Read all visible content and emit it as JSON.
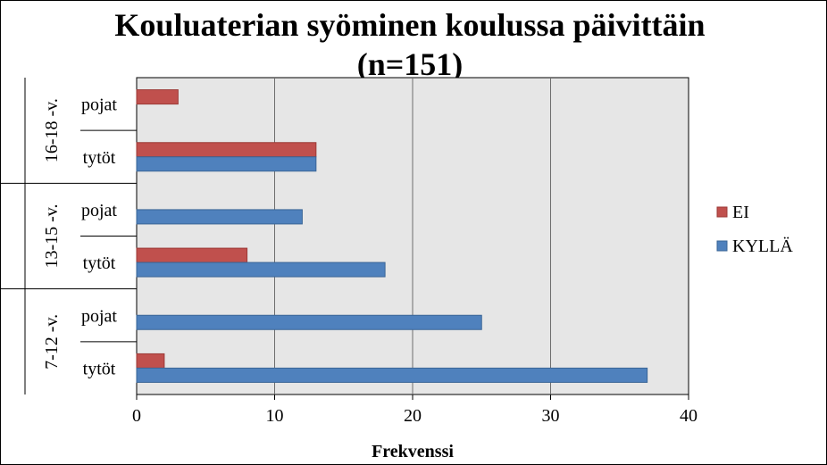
{
  "chart_data": {
    "type": "bar",
    "orientation": "horizontal",
    "title": "Kouluaterian syöminen koulussa päivittäin",
    "subtitle": "(n=151)",
    "xlabel": "Frekvenssi",
    "ylabel": "",
    "xlim": [
      0,
      40
    ],
    "xticks": [
      0,
      10,
      20,
      30,
      40
    ],
    "grid": true,
    "legend_position": "right",
    "groups": [
      {
        "label": "16-18 -v.",
        "categories": [
          "pojat",
          "tytöt"
        ]
      },
      {
        "label": "13-15 -v.",
        "categories": [
          "pojat",
          "tytöt"
        ]
      },
      {
        "label": "7-12 -v.",
        "categories": [
          "pojat",
          "tytöt"
        ]
      }
    ],
    "series": [
      {
        "name": "EI",
        "color": "#C0504D",
        "values": [
          3,
          13,
          0,
          8,
          0,
          2
        ]
      },
      {
        "name": "KYLLÄ",
        "color": "#4F81BD",
        "values": [
          0,
          13,
          12,
          18,
          25,
          37
        ]
      }
    ],
    "plot_background": "#E6E6E6"
  }
}
